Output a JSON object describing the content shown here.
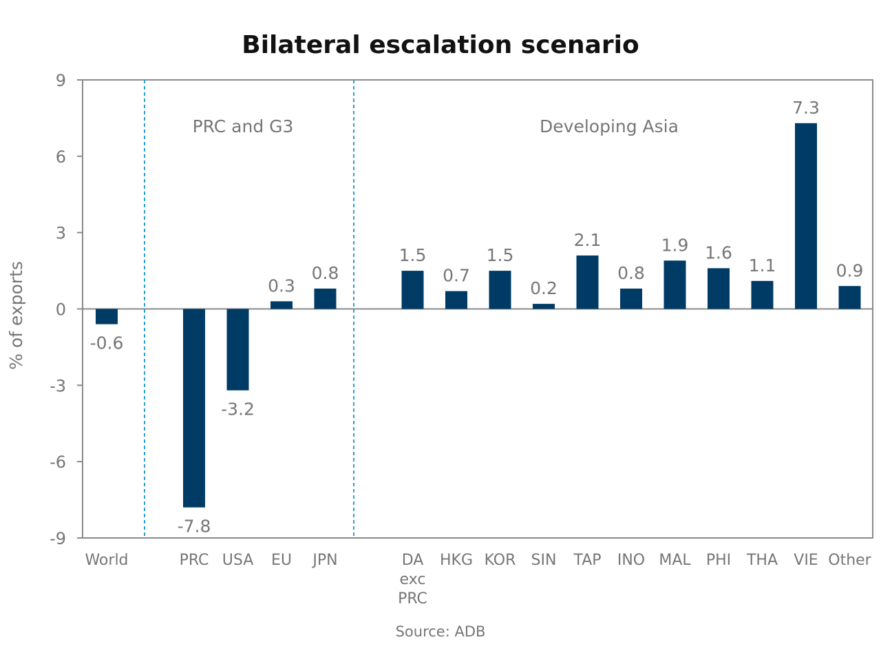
{
  "chart_data": {
    "type": "bar",
    "title": "Bilateral escalation scenario",
    "ylabel": "% of exports",
    "xlabel": "",
    "ylim": [
      -9,
      9
    ],
    "yticks": [
      9,
      6,
      3,
      0,
      -3,
      -6,
      -9
    ],
    "grid": false,
    "groups": [
      {
        "label": "PRC and G3",
        "categories": [
          "PRC",
          "USA",
          "EU",
          "JPN"
        ]
      },
      {
        "label": "Developing Asia",
        "categories": [
          "DA exc PRC",
          "HKG",
          "KOR",
          "SIN",
          "TAP",
          "INO",
          "MAL",
          "PHI",
          "THA",
          "VIE",
          "Other"
        ]
      }
    ],
    "categories": [
      "World",
      "PRC",
      "USA",
      "EU",
      "JPN",
      "DA exc PRC",
      "HKG",
      "KOR",
      "SIN",
      "TAP",
      "INO",
      "MAL",
      "PHI",
      "THA",
      "VIE",
      "Other"
    ],
    "values": [
      -0.6,
      -7.8,
      -3.2,
      0.3,
      0.8,
      1.5,
      0.7,
      1.5,
      0.2,
      2.1,
      0.8,
      1.9,
      1.6,
      1.1,
      7.3,
      0.9
    ],
    "source": "Source: ADB",
    "colors": {
      "bar": "#003b66",
      "divider": "#2a9fd0",
      "text": "#767676",
      "axis": "#8a8a8a"
    }
  }
}
